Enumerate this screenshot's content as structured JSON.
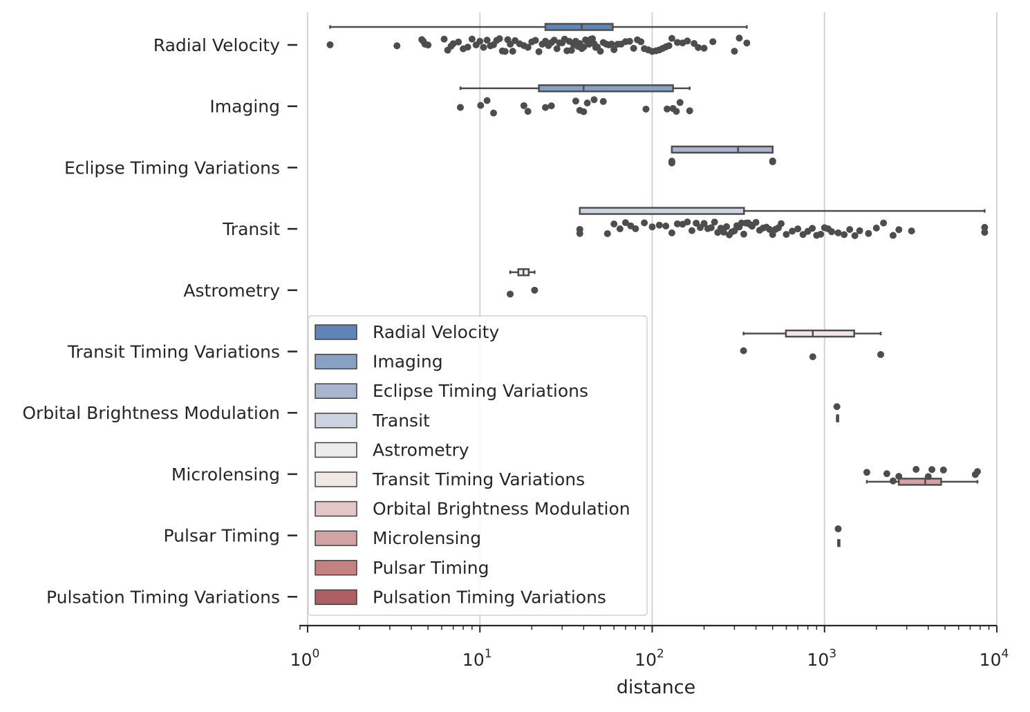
{
  "chart_data": {
    "type": "box+strip",
    "orientation": "horizontal",
    "xlabel": "distance",
    "ylabel": "",
    "xscale": "log",
    "xlim": [
      1,
      10000
    ],
    "grid": "x-major",
    "legend_placement": "lower-left",
    "xticks": [
      {
        "value": 1,
        "base": "10",
        "exp": "0"
      },
      {
        "value": 10,
        "base": "10",
        "exp": "1"
      },
      {
        "value": 100,
        "base": "10",
        "exp": "2"
      },
      {
        "value": 1000,
        "base": "10",
        "exp": "3"
      },
      {
        "value": 10000,
        "base": "10",
        "exp": "4"
      }
    ],
    "categories": [
      "Radial Velocity",
      "Imaging",
      "Eclipse Timing Variations",
      "Transit",
      "Astrometry",
      "Transit Timing Variations",
      "Orbital Brightness Modulation",
      "Microlensing",
      "Pulsar Timing",
      "Pulsation Timing Variations"
    ],
    "colors": [
      "#5f84b6",
      "#8aa0c3",
      "#a9b5ce",
      "#ccd3de",
      "#ececee",
      "#f1e7e7",
      "#e4c6c6",
      "#d3a3a3",
      "#c38182",
      "#ad6063"
    ],
    "box_stats": [
      {
        "min": 1.35,
        "q1": 24,
        "median": 39,
        "q3": 59,
        "max": 354
      },
      {
        "min": 7.7,
        "q1": 22,
        "median": 40,
        "q3": 132,
        "max": 165
      },
      {
        "min": 130,
        "q1": 130,
        "median": 315,
        "q3": 500,
        "max": 500
      },
      {
        "min": 38,
        "q1": 38,
        "median": 341,
        "q3": 341,
        "max": 8500
      },
      {
        "min": 14.98,
        "q1": 16.7,
        "median": 17.9,
        "q3": 19.2,
        "max": 20.77
      },
      {
        "min": 339,
        "q1": 597,
        "median": 855,
        "q3": 1487,
        "max": 2119
      },
      {
        "min": 1180,
        "q1": 1180,
        "median": 1180,
        "q3": 1180,
        "max": 1180
      },
      {
        "min": 1760,
        "q1": 2700,
        "median": 3840,
        "q3": 4750,
        "max": 7720
      },
      {
        "min": 1200,
        "q1": 1200,
        "median": 1200,
        "q3": 1200,
        "max": 1200
      },
      null
    ],
    "points": [
      [
        1.35,
        3.3,
        4.6,
        4.7,
        4.8,
        5.0,
        6.2,
        6.5,
        6.8,
        7.0,
        7.5,
        8.0,
        8.5,
        9.0,
        9.5,
        10.0,
        10.5,
        11.0,
        11.5,
        12.0,
        12.5,
        13.0,
        13.5,
        14.0,
        14.5,
        15.0,
        15.5,
        16.0,
        17.0,
        18.0,
        19.0,
        20.0,
        21.0,
        22.0,
        23.0,
        24.0,
        25.0,
        26.0,
        27.0,
        28.0,
        29.0,
        30.0,
        31.0,
        32.0,
        33.0,
        34.0,
        35.0,
        36.0,
        37.0,
        38.0,
        39.0,
        40.0,
        41.0,
        42.0,
        43.0,
        44.0,
        45.0,
        46.0,
        47.0,
        48.0,
        50.0,
        52.0,
        54.0,
        56.0,
        58.0,
        60.0,
        63.0,
        66.0,
        70.0,
        74.0,
        78.0,
        82.0,
        86.0,
        90.0,
        95.0,
        100.0,
        105.0,
        110.0,
        115.0,
        120.0,
        125.0,
        130.0,
        140.0,
        150.0,
        160.0,
        175.0,
        185.0,
        200.0,
        225.0,
        300.0,
        320.0,
        354.0
      ],
      [
        7.7,
        10.1,
        11.0,
        12.0,
        18.0,
        19.0,
        24.0,
        26.0,
        36.0,
        38.0,
        40.0,
        42.0,
        46.0,
        52.0,
        92.0,
        122.0,
        132.0,
        138.0,
        145.0,
        165.0
      ],
      [
        130.0,
        130.0,
        500.0,
        500.0
      ],
      [
        38.0,
        38.0,
        55.0,
        60.0,
        65.0,
        70.0,
        75.0,
        80.0,
        90.0,
        100.0,
        110.0,
        120.0,
        130.0,
        140.0,
        150.0,
        160.0,
        170.0,
        180.0,
        190.0,
        200.0,
        210.0,
        220.0,
        230.0,
        240.0,
        250.0,
        260.0,
        270.0,
        280.0,
        290.0,
        300.0,
        310.0,
        320.0,
        330.0,
        340.0,
        350.0,
        360.0,
        370.0,
        380.0,
        400.0,
        420.0,
        440.0,
        460.0,
        480.0,
        500.0,
        520.0,
        540.0,
        560.0,
        600.0,
        650.0,
        700.0,
        750.0,
        800.0,
        850.0,
        900.0,
        950.0,
        1000.0,
        1050.0,
        1100.0,
        1200.0,
        1300.0,
        1400.0,
        1500.0,
        1600.0,
        1800.0,
        2000.0,
        2200.0,
        2500.0,
        2700.0,
        3200.0,
        8500.0,
        8500.0
      ],
      [
        14.98,
        20.77
      ],
      [
        339.0,
        855.0,
        2119.0
      ],
      [
        1180.0
      ],
      [
        1760.0,
        2300.0,
        2500.0,
        2700.0,
        3400.0,
        4000.0,
        4200.0,
        4900.0,
        7500.0,
        7720.0
      ],
      [
        1200.0
      ],
      []
    ]
  }
}
